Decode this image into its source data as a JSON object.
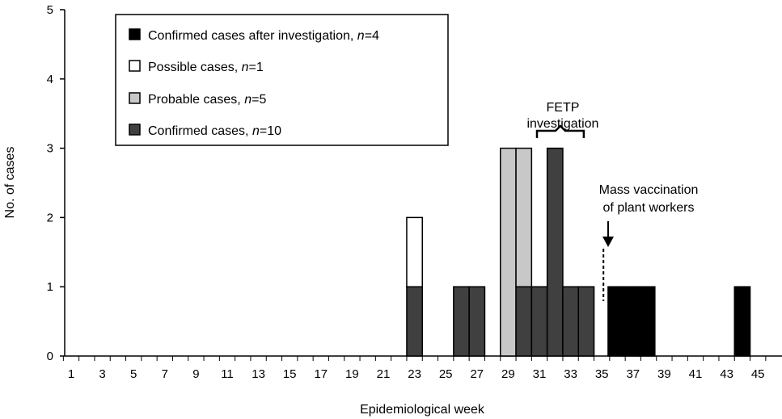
{
  "chart_data": {
    "type": "bar",
    "stacked": true,
    "xlabel": "Epidemiological week",
    "ylabel": "No. of cases",
    "ylim": [
      0,
      5
    ],
    "y_ticks": [
      "0",
      "1",
      "2",
      "3",
      "4",
      "5"
    ],
    "x_tick_labels": [
      "1",
      "3",
      "5",
      "7",
      "9",
      "11",
      "13",
      "15",
      "17",
      "19",
      "21",
      "23",
      "25",
      "27",
      "29",
      "31",
      "33",
      "35",
      "37",
      "39",
      "41",
      "43",
      "45"
    ],
    "legend_position": "top-left",
    "legend": [
      {
        "key": "confirmed_after",
        "label": "Confirmed cases after investigation, ",
        "n_label": "n",
        "n_value": "=4",
        "color": "#000000"
      },
      {
        "key": "possible",
        "label": "Possible cases, ",
        "n_label": "n",
        "n_value": "=1",
        "color": "#ffffff"
      },
      {
        "key": "probable",
        "label": "Probable cases, ",
        "n_label": "n",
        "n_value": "=5",
        "color": "#c8c8c8"
      },
      {
        "key": "confirmed",
        "label": "Confirmed cases, ",
        "n_label": "n",
        "n_value": "=10",
        "color": "#404040"
      }
    ],
    "cases": [
      {
        "week": 23,
        "confirmed": 1,
        "possible": 1
      },
      {
        "week": 26,
        "confirmed": 1
      },
      {
        "week": 27,
        "confirmed": 1
      },
      {
        "week": 29,
        "probable": 3
      },
      {
        "week": 30,
        "confirmed": 1,
        "probable": 2
      },
      {
        "week": 31,
        "confirmed": 1
      },
      {
        "week": 32,
        "confirmed": 3
      },
      {
        "week": 33,
        "confirmed": 1
      },
      {
        "week": 34,
        "confirmed": 1
      },
      {
        "week": 35.9,
        "confirmed_after": 1
      },
      {
        "week": 36.9,
        "confirmed_after": 1
      },
      {
        "week": 37.9,
        "confirmed_after": 1
      },
      {
        "week": 44,
        "confirmed_after": 1
      }
    ],
    "annotations": {
      "fetp": {
        "lines": [
          "FETP",
          "investigation"
        ],
        "week_start": 31,
        "week_end": 34
      },
      "vaccination": {
        "lines": [
          "Mass vaccination",
          "of plant workers"
        ],
        "week": 35
      }
    }
  }
}
